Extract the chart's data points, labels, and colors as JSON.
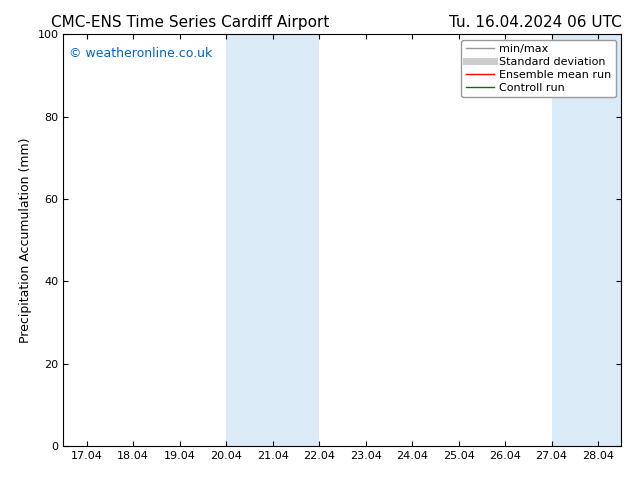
{
  "title_left": "CMC-ENS Time Series Cardiff Airport",
  "title_right": "Tu. 16.04.2024 06 UTC",
  "ylabel": "Precipitation Accumulation (mm)",
  "ylim": [
    0,
    100
  ],
  "yticks": [
    0,
    20,
    40,
    60,
    80,
    100
  ],
  "x_tick_labels": [
    "17.04",
    "18.04",
    "19.04",
    "20.04",
    "21.04",
    "22.04",
    "23.04",
    "24.04",
    "25.04",
    "26.04",
    "27.04",
    "28.04"
  ],
  "x_tick_positions": [
    0,
    1,
    2,
    3,
    4,
    5,
    6,
    7,
    8,
    9,
    10,
    11
  ],
  "xlim": [
    -0.5,
    11.5
  ],
  "shaded_regions": [
    {
      "xmin": 3,
      "xmax": 5,
      "color": "#daeaf7"
    },
    {
      "xmin": 10,
      "xmax": 11.5,
      "color": "#daeaf7"
    }
  ],
  "watermark_text": "© weatheronline.co.uk",
  "watermark_color": "#0066cc",
  "background_color": "#ffffff",
  "legend_entries": [
    {
      "label": "min/max",
      "color": "#999999",
      "linewidth": 1.0,
      "linestyle": "-"
    },
    {
      "label": "Standard deviation",
      "color": "#cccccc",
      "linewidth": 5,
      "linestyle": "-"
    },
    {
      "label": "Ensemble mean run",
      "color": "#ff0000",
      "linewidth": 1.0,
      "linestyle": "-"
    },
    {
      "label": "Controll run",
      "color": "#007700",
      "linewidth": 1.0,
      "linestyle": "-"
    }
  ],
  "title_fontsize": 11,
  "tick_fontsize": 8,
  "legend_fontsize": 8,
  "ylabel_fontsize": 9,
  "watermark_fontsize": 9
}
